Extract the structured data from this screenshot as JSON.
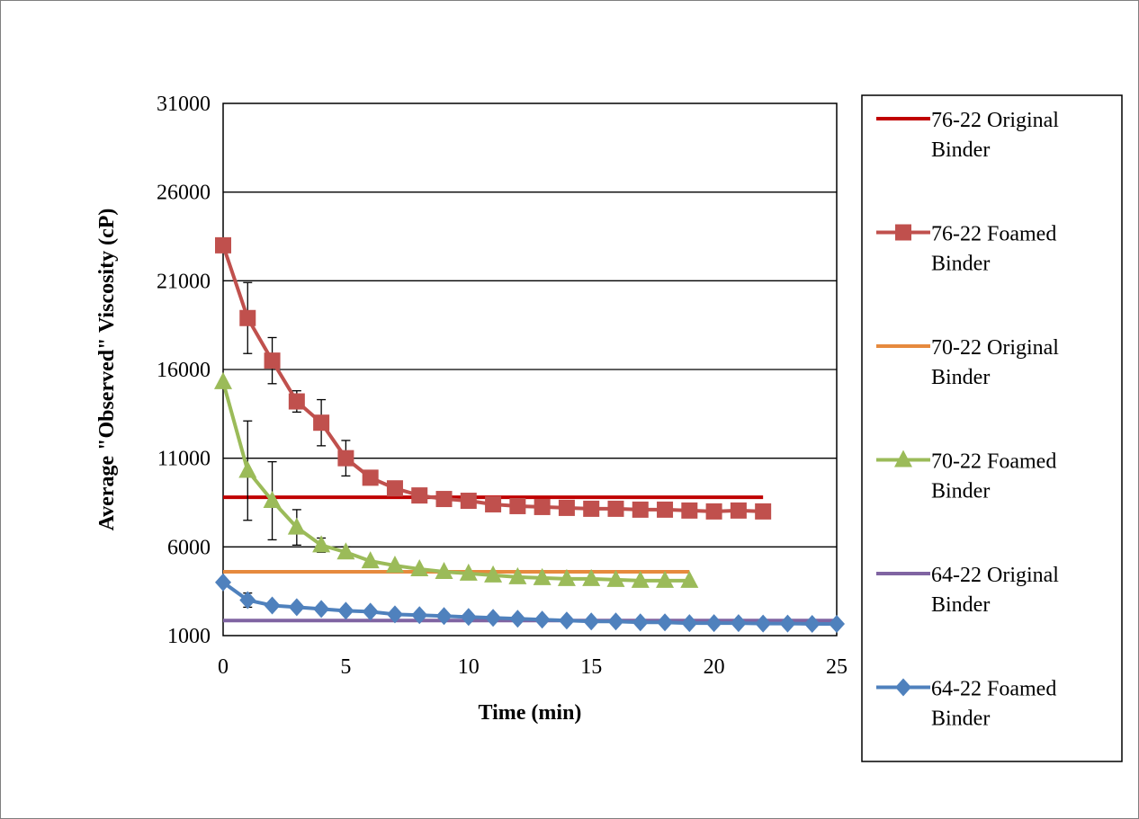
{
  "chart_data": {
    "type": "line",
    "title": "",
    "xlabel": "Time (min)",
    "ylabel": "Average \"Observed\" Viscosity (cP)",
    "xlim": [
      0,
      25
    ],
    "ylim": [
      1000,
      31000
    ],
    "xticks": [
      0,
      5,
      10,
      15,
      20,
      25
    ],
    "yticks": [
      1000,
      6000,
      11000,
      16000,
      21000,
      26000,
      31000
    ],
    "grid": "horizontal major gridlines",
    "legend_position": "right",
    "series": [
      {
        "name": "76-22 Original Binder",
        "color": "#c00000",
        "marker": "none",
        "x": [
          0,
          22
        ],
        "y": [
          8800,
          8800
        ]
      },
      {
        "name": "76-22 Foamed Binder",
        "color": "#c0504d",
        "marker": "square",
        "x": [
          0,
          1,
          2,
          3,
          4,
          5,
          6,
          7,
          8,
          9,
          10,
          11,
          12,
          13,
          14,
          15,
          16,
          17,
          18,
          19,
          20,
          21,
          22
        ],
        "y": [
          23000,
          18900,
          16500,
          14200,
          13000,
          11000,
          9900,
          9300,
          8900,
          8700,
          8600,
          8400,
          8300,
          8250,
          8200,
          8150,
          8150,
          8100,
          8100,
          8050,
          8000,
          8050,
          8000
        ],
        "error": [
          0,
          2000,
          1300,
          600,
          1300,
          1000,
          0,
          0,
          0,
          0,
          0,
          0,
          0,
          0,
          0,
          0,
          0,
          0,
          0,
          0,
          0,
          0,
          0
        ]
      },
      {
        "name": "70-22 Original Binder",
        "color": "#e68a3e",
        "marker": "none",
        "x": [
          0,
          19
        ],
        "y": [
          4600,
          4600
        ]
      },
      {
        "name": "70-22 Foamed Binder",
        "color": "#9bbb59",
        "marker": "triangle",
        "x": [
          0,
          1,
          2,
          3,
          4,
          5,
          6,
          7,
          8,
          9,
          10,
          11,
          12,
          13,
          14,
          15,
          16,
          17,
          18,
          19
        ],
        "y": [
          15300,
          10300,
          8600,
          7100,
          6100,
          5700,
          5200,
          4950,
          4750,
          4600,
          4500,
          4400,
          4300,
          4250,
          4200,
          4200,
          4150,
          4100,
          4100,
          4100
        ],
        "error": [
          0,
          2800,
          2200,
          1000,
          400,
          300,
          0,
          0,
          0,
          0,
          0,
          0,
          0,
          0,
          0,
          0,
          0,
          0,
          0,
          0
        ]
      },
      {
        "name": "64-22 Original Binder",
        "color": "#8064a2",
        "marker": "none",
        "x": [
          0,
          25
        ],
        "y": [
          1850,
          1850
        ]
      },
      {
        "name": "64-22 Foamed Binder",
        "color": "#4f81bd",
        "marker": "diamond",
        "x": [
          0,
          1,
          2,
          3,
          4,
          5,
          6,
          7,
          8,
          9,
          10,
          11,
          12,
          13,
          14,
          15,
          16,
          17,
          18,
          19,
          20,
          21,
          22,
          23,
          24,
          25
        ],
        "y": [
          4000,
          3000,
          2700,
          2600,
          2500,
          2400,
          2350,
          2200,
          2150,
          2100,
          2050,
          2000,
          1950,
          1900,
          1850,
          1800,
          1800,
          1750,
          1750,
          1700,
          1700,
          1700,
          1680,
          1680,
          1660,
          1660
        ],
        "error": [
          0,
          400,
          0,
          0,
          0,
          0,
          0,
          0,
          0,
          0,
          0,
          0,
          0,
          0,
          0,
          0,
          0,
          0,
          0,
          0,
          0,
          0,
          0,
          0,
          0,
          0
        ]
      }
    ]
  }
}
